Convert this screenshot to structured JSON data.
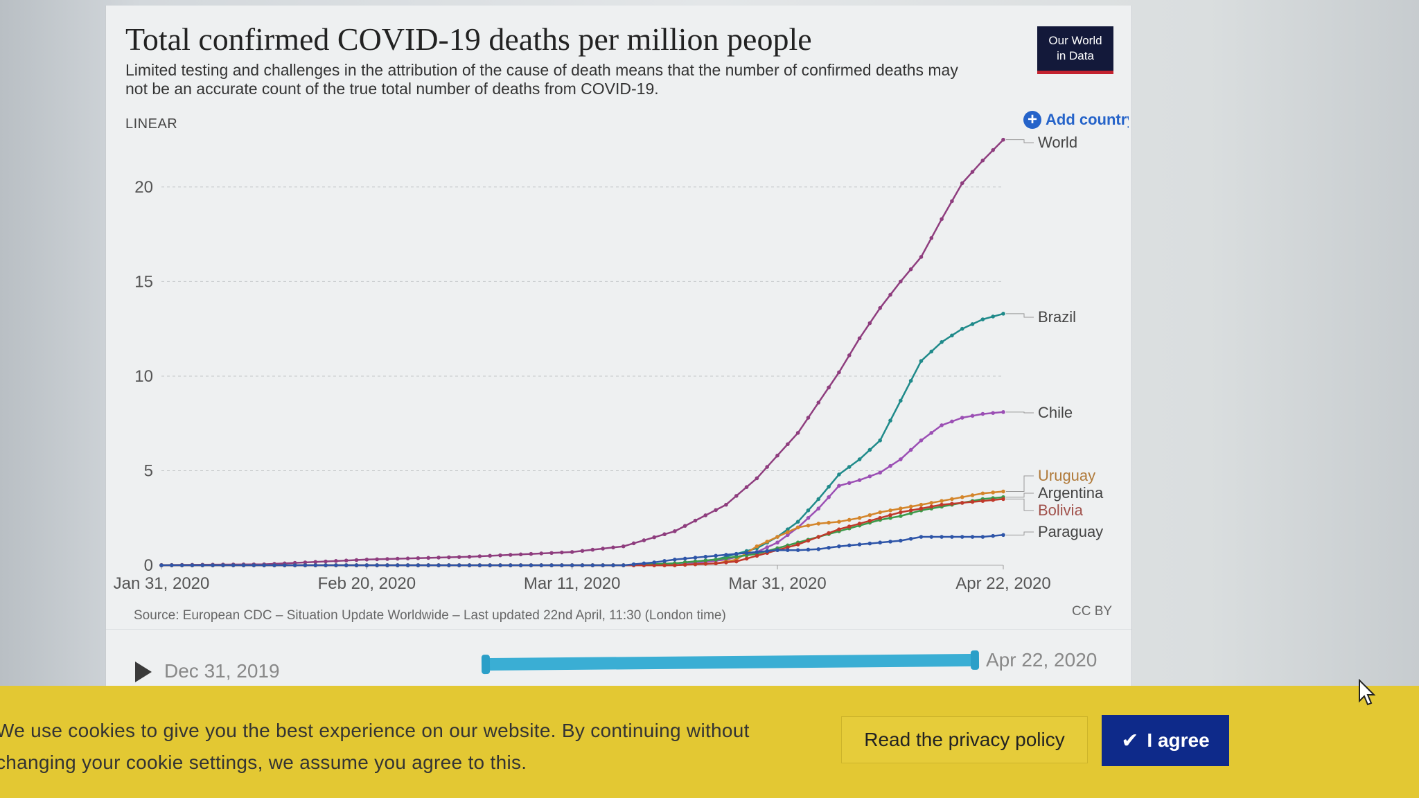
{
  "chart": {
    "title": "Total confirmed COVID-19 deaths per million people",
    "subtitle": "Limited testing and challenges in the attribution of the cause of death means that the number of confirmed deaths may not be an accurate count of the true total number of deaths from COVID-19.",
    "logo_text": "Our World in Data",
    "scale_label": "LINEAR",
    "add_country_label": "Add country",
    "source": "Source: European CDC – Situation Update Worldwide – Last updated 22nd April, 11:30 (London time)",
    "license": "CC BY"
  },
  "timeline": {
    "start_label": "Dec 31, 2019",
    "end_label": "Apr 22, 2020"
  },
  "cookie": {
    "message": "We use cookies to give you the best experience on our website. By continuing without changing your cookie settings, we assume you agree to this.",
    "privacy_label": "Read the privacy policy",
    "agree_label": "I agree"
  },
  "colors": {
    "World": "#8e3d7e",
    "Brazil": "#1f8a8a",
    "Chile": "#9b4fb4",
    "Uruguay": "#d4852a",
    "Argentina": "#3c9a4a",
    "Bolivia": "#c0392b",
    "Paraguay": "#2e55a8",
    "accent": "#2563c9",
    "cookie_bg": "#e3c833",
    "agree_bg": "#0e2a8a"
  },
  "chart_data": {
    "type": "line",
    "title": "Total confirmed COVID-19 deaths per million people",
    "xlabel": "",
    "ylabel": "",
    "ylim": [
      0,
      23
    ],
    "yticks": [
      0,
      5,
      10,
      15,
      20
    ],
    "xticks": [
      "Jan 31, 2020",
      "Feb 20, 2020",
      "Mar 11, 2020",
      "Mar 31, 2020",
      "Apr 22, 2020"
    ],
    "xtick_days": [
      0,
      20,
      40,
      60,
      82
    ],
    "x_start_day": 0,
    "x_end_day": 82,
    "grid": true,
    "series": [
      {
        "name": "World",
        "points": [
          [
            0,
            0.01
          ],
          [
            10,
            0.05
          ],
          [
            20,
            0.3
          ],
          [
            30,
            0.45
          ],
          [
            40,
            0.7
          ],
          [
            45,
            1.0
          ],
          [
            50,
            1.8
          ],
          [
            55,
            3.2
          ],
          [
            58,
            4.6
          ],
          [
            60,
            5.8
          ],
          [
            62,
            7.0
          ],
          [
            64,
            8.6
          ],
          [
            66,
            10.2
          ],
          [
            68,
            12.0
          ],
          [
            70,
            13.6
          ],
          [
            72,
            15.0
          ],
          [
            74,
            16.3
          ],
          [
            76,
            18.3
          ],
          [
            78,
            20.2
          ],
          [
            80,
            21.4
          ],
          [
            82,
            22.5
          ]
        ]
      },
      {
        "name": "Brazil",
        "points": [
          [
            0,
            0
          ],
          [
            46,
            0
          ],
          [
            50,
            0.1
          ],
          [
            54,
            0.3
          ],
          [
            58,
            0.9
          ],
          [
            60,
            1.5
          ],
          [
            62,
            2.3
          ],
          [
            64,
            3.5
          ],
          [
            66,
            4.8
          ],
          [
            68,
            5.6
          ],
          [
            70,
            6.6
          ],
          [
            72,
            8.7
          ],
          [
            74,
            10.8
          ],
          [
            76,
            11.8
          ],
          [
            78,
            12.5
          ],
          [
            80,
            13.0
          ],
          [
            82,
            13.3
          ]
        ]
      },
      {
        "name": "Chile",
        "points": [
          [
            0,
            0
          ],
          [
            50,
            0
          ],
          [
            55,
            0.3
          ],
          [
            58,
            0.7
          ],
          [
            60,
            1.2
          ],
          [
            62,
            2.0
          ],
          [
            64,
            3.0
          ],
          [
            66,
            4.2
          ],
          [
            68,
            4.5
          ],
          [
            70,
            4.9
          ],
          [
            72,
            5.6
          ],
          [
            74,
            6.6
          ],
          [
            76,
            7.4
          ],
          [
            78,
            7.8
          ],
          [
            80,
            8.0
          ],
          [
            82,
            8.1
          ]
        ]
      },
      {
        "name": "Uruguay",
        "points": [
          [
            0,
            0
          ],
          [
            50,
            0
          ],
          [
            54,
            0.1
          ],
          [
            56,
            0.3
          ],
          [
            58,
            1.0
          ],
          [
            60,
            1.5
          ],
          [
            62,
            2.0
          ],
          [
            64,
            2.2
          ],
          [
            66,
            2.3
          ],
          [
            68,
            2.5
          ],
          [
            70,
            2.8
          ],
          [
            72,
            3.0
          ],
          [
            74,
            3.2
          ],
          [
            76,
            3.4
          ],
          [
            78,
            3.6
          ],
          [
            80,
            3.8
          ],
          [
            82,
            3.9
          ]
        ]
      },
      {
        "name": "Argentina",
        "points": [
          [
            0,
            0
          ],
          [
            45,
            0
          ],
          [
            50,
            0.1
          ],
          [
            54,
            0.3
          ],
          [
            58,
            0.6
          ],
          [
            60,
            0.9
          ],
          [
            62,
            1.2
          ],
          [
            64,
            1.5
          ],
          [
            66,
            1.8
          ],
          [
            68,
            2.1
          ],
          [
            70,
            2.4
          ],
          [
            72,
            2.6
          ],
          [
            74,
            2.9
          ],
          [
            76,
            3.1
          ],
          [
            78,
            3.3
          ],
          [
            80,
            3.5
          ],
          [
            82,
            3.6
          ]
        ]
      },
      {
        "name": "Bolivia",
        "points": [
          [
            0,
            0
          ],
          [
            50,
            0
          ],
          [
            54,
            0.1
          ],
          [
            56,
            0.2
          ],
          [
            58,
            0.5
          ],
          [
            60,
            0.8
          ],
          [
            62,
            1.1
          ],
          [
            64,
            1.5
          ],
          [
            66,
            1.9
          ],
          [
            68,
            2.2
          ],
          [
            70,
            2.5
          ],
          [
            72,
            2.8
          ],
          [
            74,
            3.0
          ],
          [
            76,
            3.2
          ],
          [
            78,
            3.3
          ],
          [
            80,
            3.4
          ],
          [
            82,
            3.5
          ]
        ]
      },
      {
        "name": "Paraguay",
        "points": [
          [
            0,
            0
          ],
          [
            45,
            0
          ],
          [
            48,
            0.15
          ],
          [
            50,
            0.3
          ],
          [
            54,
            0.5
          ],
          [
            58,
            0.7
          ],
          [
            60,
            0.8
          ],
          [
            62,
            0.8
          ],
          [
            64,
            0.85
          ],
          [
            66,
            1.0
          ],
          [
            68,
            1.1
          ],
          [
            70,
            1.2
          ],
          [
            72,
            1.3
          ],
          [
            74,
            1.5
          ],
          [
            76,
            1.5
          ],
          [
            78,
            1.5
          ],
          [
            80,
            1.5
          ],
          [
            82,
            1.6
          ]
        ]
      }
    ]
  }
}
